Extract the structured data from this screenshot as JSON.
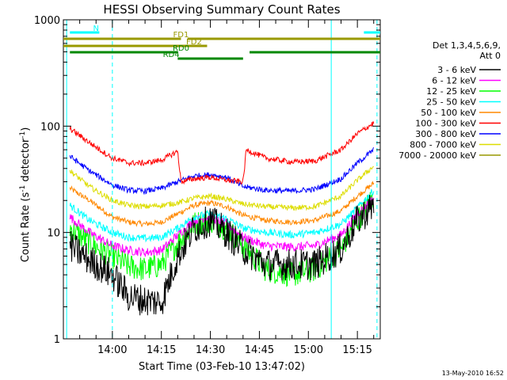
{
  "chart_data": {
    "type": "line",
    "title": "HESSI Observing Summary Count Rates",
    "xlabel": "Start Time (03-Feb-10 13:47:02)",
    "ylabel": "Count Rate (s",
    "ylabel_sup1": "-1",
    "ylabel_mid": " detector",
    "ylabel_sup2": "-1",
    "ylabel_end": ")",
    "yscale": "log",
    "ylim": [
      1,
      1000
    ],
    "xlim_minutes": [
      -15,
      82
    ],
    "x_ticks": [
      {
        "t": 0,
        "label": "14:00"
      },
      {
        "t": 15,
        "label": "14:15"
      },
      {
        "t": 30,
        "label": "14:30"
      },
      {
        "t": 45,
        "label": "14:45"
      },
      {
        "t": 60,
        "label": "15:00"
      },
      {
        "t": 75,
        "label": "15:15"
      }
    ],
    "y_ticks": [
      {
        "v": 1,
        "label": "1"
      },
      {
        "v": 10,
        "label": "10"
      },
      {
        "v": 100,
        "label": "100"
      },
      {
        "v": 1000,
        "label": "1000"
      }
    ],
    "legend_header": [
      "Det 1,3,4,5,6,9,",
      "Att 0"
    ],
    "series": [
      {
        "name": "3 - 6 keV",
        "color": "#000000",
        "x": [
          -13,
          -7,
          0,
          5,
          10,
          15,
          20,
          25,
          30,
          35,
          40,
          47,
          55,
          62,
          70,
          75,
          80
        ],
        "y": [
          7.5,
          5.5,
          4.0,
          2.5,
          2.3,
          2.2,
          6,
          11,
          13,
          10,
          7,
          5,
          5,
          5,
          7,
          13,
          18
        ]
      },
      {
        "name": "6 - 12 keV",
        "color": "#ff00ff",
        "x": [
          -13,
          -7,
          0,
          5,
          10,
          15,
          20,
          25,
          30,
          35,
          40,
          47,
          55,
          62,
          70,
          75,
          80
        ],
        "y": [
          14,
          10,
          7.5,
          6.8,
          6.5,
          6.8,
          9.5,
          13,
          14,
          12,
          9,
          7.5,
          7.3,
          7.5,
          9.5,
          15,
          21
        ]
      },
      {
        "name": "12 - 25 keV",
        "color": "#00ff00",
        "x": [
          -13,
          -7,
          0,
          5,
          10,
          15,
          20,
          25,
          30,
          35,
          40,
          47,
          55,
          62,
          70,
          75,
          80
        ],
        "y": [
          11,
          8,
          6,
          4.8,
          4.5,
          5,
          8,
          12,
          13,
          11,
          7.5,
          4.5,
          4.0,
          4.5,
          7,
          13,
          22
        ]
      },
      {
        "name": "25 - 50 keV",
        "color": "#00ffff",
        "x": [
          -13,
          -7,
          0,
          5,
          10,
          15,
          20,
          25,
          30,
          35,
          40,
          47,
          55,
          62,
          70,
          75,
          80
        ],
        "y": [
          18,
          13,
          10,
          9,
          8.8,
          9,
          11,
          14,
          15,
          13.5,
          11,
          10,
          9.5,
          10,
          12,
          17,
          25
        ]
      },
      {
        "name": "50 - 100 keV",
        "color": "#ff8800",
        "x": [
          -13,
          -7,
          0,
          5,
          10,
          15,
          20,
          25,
          30,
          35,
          40,
          47,
          55,
          62,
          70,
          75,
          80
        ],
        "y": [
          26,
          20,
          14,
          12.5,
          12,
          12.5,
          15,
          18,
          19,
          17.5,
          14.5,
          13,
          12.5,
          13,
          16,
          22,
          29
        ]
      },
      {
        "name": "100 - 300 keV",
        "color": "#ff0000",
        "x": [
          -13,
          -7,
          0,
          5,
          10,
          15,
          20,
          21,
          25,
          30,
          35,
          40,
          41,
          47,
          55,
          62,
          70,
          75,
          80
        ],
        "y": [
          95,
          70,
          50,
          45,
          45,
          48,
          58,
          30,
          32,
          33,
          31,
          30,
          60,
          50,
          46,
          47,
          60,
          85,
          107
        ]
      },
      {
        "name": "300 - 800 keV",
        "color": "#0000ff",
        "x": [
          -13,
          -7,
          0,
          5,
          10,
          15,
          20,
          25,
          30,
          35,
          40,
          47,
          55,
          62,
          70,
          75,
          80
        ],
        "y": [
          52,
          38,
          28,
          25,
          24.5,
          26,
          30,
          34,
          35,
          33,
          27,
          25,
          24.5,
          25.5,
          32,
          45,
          60
        ]
      },
      {
        "name": "800 - 7000 keV",
        "color": "#dddd00",
        "x": [
          -13,
          -7,
          0,
          5,
          10,
          15,
          20,
          25,
          30,
          35,
          40,
          47,
          55,
          62,
          70,
          75,
          80
        ],
        "y": [
          38,
          27,
          20,
          18,
          17.5,
          18,
          19,
          21,
          22,
          20.5,
          18.5,
          17.5,
          17,
          17.5,
          22,
          31,
          42
        ]
      },
      {
        "name": "7000 - 20000 keV",
        "color": "#999900",
        "x": [],
        "y": []
      }
    ],
    "flag_bars": [
      {
        "label": "N",
        "color": "#00ffff",
        "segments": [
          [
            -13,
            -4
          ],
          [
            77,
            82
          ]
        ]
      },
      {
        "label": "FD1",
        "color": "#999900",
        "segments": [
          [
            -15,
            21
          ],
          [
            23,
            82
          ]
        ]
      },
      {
        "label": "FD2",
        "color": "#999900",
        "segments": [
          [
            -15,
            29
          ]
        ]
      },
      {
        "label": "RD0",
        "color": "#008800",
        "segments": [
          [
            -13,
            20
          ],
          [
            42,
            82
          ]
        ]
      },
      {
        "label": "RD4",
        "color": "#008800",
        "segments": [
          [
            20,
            40
          ]
        ]
      }
    ],
    "vlines_solid": [
      -14,
      67
    ],
    "vlines_dashed": [
      0,
      81
    ],
    "timestamp": "13-May-2010 16:52"
  }
}
